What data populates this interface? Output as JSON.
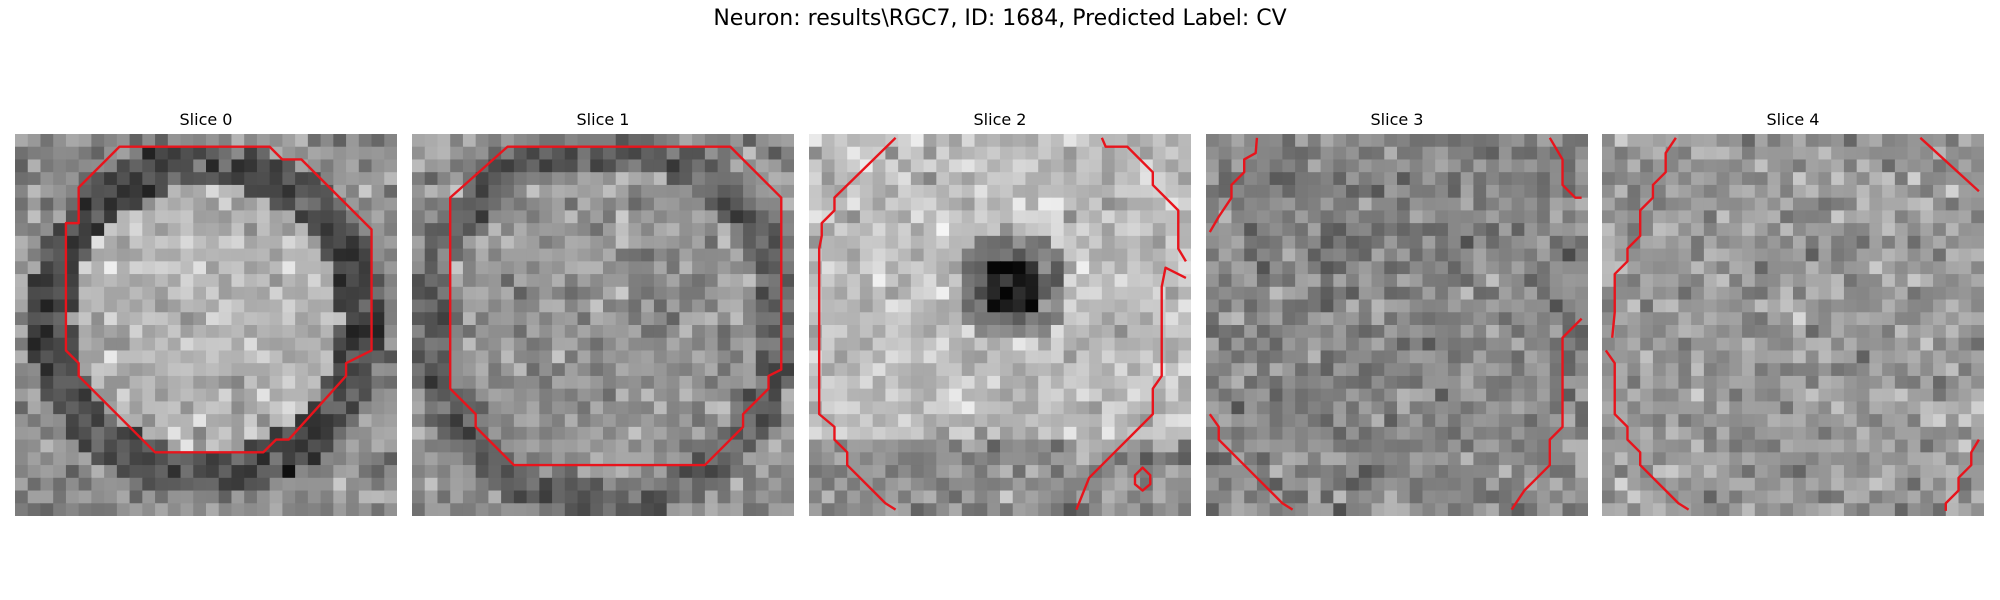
{
  "figure": {
    "title": "Neuron: results\\RGC7, ID: 1684, Predicted Label: CV",
    "slices": [
      {
        "label": "Slice 0"
      },
      {
        "label": "Slice 1"
      },
      {
        "label": "Slice 2"
      },
      {
        "label": "Slice 3"
      },
      {
        "label": "Slice 4"
      }
    ],
    "contour_color": "#e8141c"
  }
}
